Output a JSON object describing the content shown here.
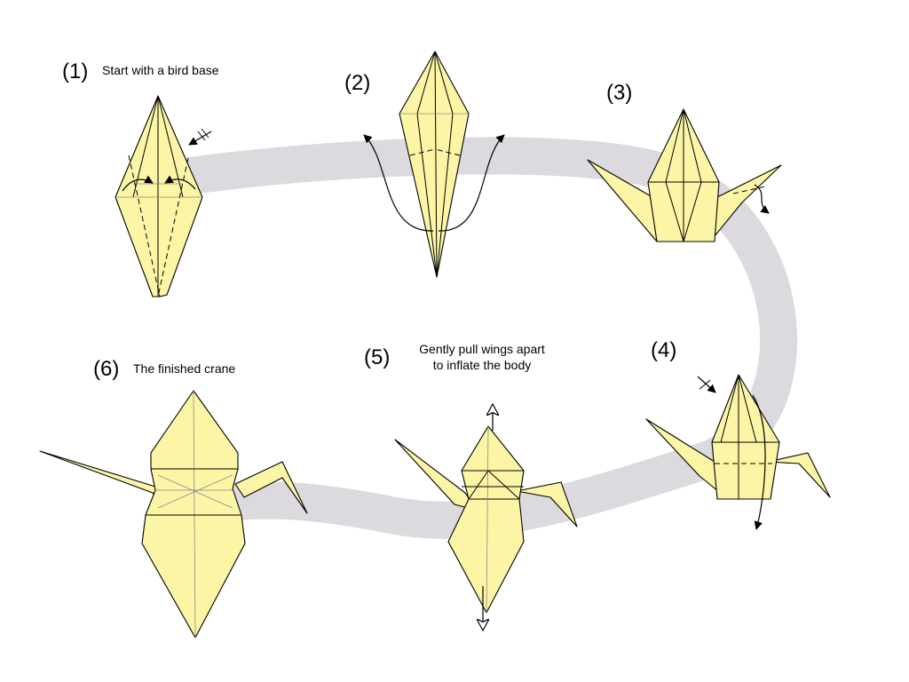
{
  "colors": {
    "paper": "#fbf5a5",
    "path_band": "#dcdadf",
    "ink": "#000000",
    "crease": "#8a8a8a"
  },
  "steps": [
    {
      "number": "(1)",
      "caption": "Start with a bird base"
    },
    {
      "number": "(2)",
      "caption": ""
    },
    {
      "number": "(3)",
      "caption": ""
    },
    {
      "number": "(4)",
      "caption": ""
    },
    {
      "number": "(5)",
      "caption_line1": "Gently pull wings apart",
      "caption_line2": "to inflate the body"
    },
    {
      "number": "(6)",
      "caption": "The finished crane"
    }
  ]
}
